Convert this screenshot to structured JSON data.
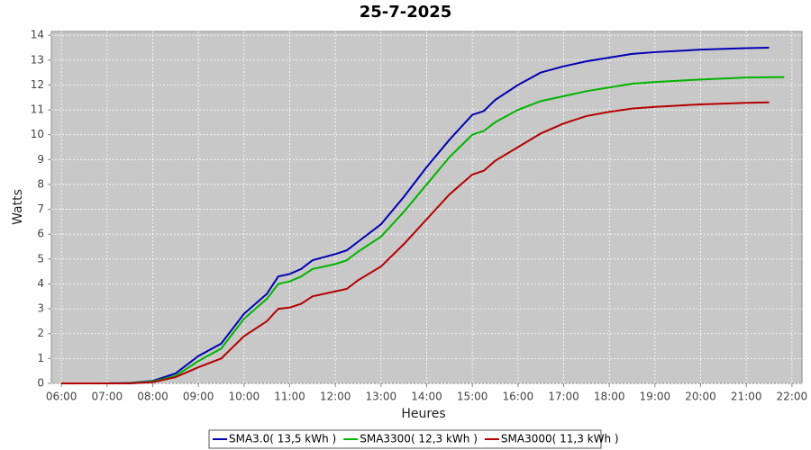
{
  "chart_data": {
    "type": "line",
    "title": "25-7-2025",
    "x_label": "Heures",
    "y_label": "Watts",
    "xlim": [
      5.78,
      22.22
    ],
    "xticks": [
      {
        "value": 6,
        "label": "06:00"
      },
      {
        "value": 7,
        "label": "07:00"
      },
      {
        "value": 8,
        "label": "08:00"
      },
      {
        "value": 9,
        "label": "09:00"
      },
      {
        "value": 10,
        "label": "10:00"
      },
      {
        "value": 11,
        "label": "11:00"
      },
      {
        "value": 12,
        "label": "12:00"
      },
      {
        "value": 13,
        "label": "13:00"
      },
      {
        "value": 14,
        "label": "14:00"
      },
      {
        "value": 15,
        "label": "15:00"
      },
      {
        "value": 16,
        "label": "16:00"
      },
      {
        "value": 17,
        "label": "17:00"
      },
      {
        "value": 18,
        "label": "18:00"
      },
      {
        "value": 19,
        "label": "19:00"
      },
      {
        "value": 20,
        "label": "20:00"
      },
      {
        "value": 21,
        "label": "21:00"
      },
      {
        "value": 22,
        "label": "22:00"
      }
    ],
    "ylim": [
      0,
      14.15
    ],
    "yticks": [
      0,
      1,
      2,
      3,
      4,
      5,
      6,
      7,
      8,
      9,
      10,
      11,
      12,
      13,
      14
    ],
    "grid": true,
    "legend": "bottom",
    "series": [
      {
        "name": "SMA3.0( 13,5 kWh )",
        "color": "#0000b4",
        "x": [
          6,
          7,
          7.5,
          8,
          8.5,
          9,
          9.5,
          10,
          10.5,
          10.75,
          11,
          11.25,
          11.5,
          12,
          12.25,
          12.5,
          13,
          13.5,
          14,
          14.5,
          15,
          15.25,
          15.5,
          16,
          16.5,
          17,
          17.5,
          18,
          18.5,
          19,
          20,
          21,
          21.5
        ],
        "values": [
          0,
          0,
          0.02,
          0.1,
          0.4,
          1.1,
          1.6,
          2.8,
          3.6,
          4.3,
          4.4,
          4.6,
          4.95,
          5.2,
          5.35,
          5.7,
          6.4,
          7.5,
          8.7,
          9.8,
          10.8,
          10.95,
          11.4,
          12.0,
          12.5,
          12.75,
          12.95,
          13.1,
          13.25,
          13.32,
          13.42,
          13.48,
          13.5
        ]
      },
      {
        "name": "SMA3300( 12,3 kWh )",
        "color": "#00b400",
        "x": [
          6,
          7,
          7.5,
          8,
          8.5,
          9,
          9.5,
          10,
          10.5,
          10.75,
          11,
          11.25,
          11.5,
          12,
          12.25,
          12.5,
          13,
          13.5,
          14,
          14.5,
          15,
          15.25,
          15.5,
          16,
          16.5,
          17,
          17.5,
          18,
          18.5,
          19,
          20,
          21,
          21.83
        ],
        "values": [
          0,
          0,
          0.01,
          0.08,
          0.3,
          0.9,
          1.4,
          2.6,
          3.4,
          4.0,
          4.1,
          4.3,
          4.6,
          4.8,
          4.95,
          5.3,
          5.9,
          6.9,
          8.0,
          9.1,
          10.0,
          10.15,
          10.5,
          11.0,
          11.35,
          11.55,
          11.75,
          11.9,
          12.05,
          12.12,
          12.22,
          12.3,
          12.32
        ]
      },
      {
        "name": "SMA3000( 11,3 kWh )",
        "color": "#b40000",
        "x": [
          6,
          7,
          7.5,
          8,
          8.5,
          9,
          9.5,
          10,
          10.5,
          10.75,
          11,
          11.25,
          11.5,
          12,
          12.25,
          12.5,
          13,
          13.5,
          14,
          14.5,
          15,
          15.25,
          15.5,
          16,
          16.5,
          17,
          17.5,
          18,
          18.5,
          19,
          20,
          21,
          21.5
        ],
        "values": [
          0,
          0,
          0,
          0.05,
          0.25,
          0.65,
          1.0,
          1.9,
          2.5,
          3.0,
          3.05,
          3.2,
          3.5,
          3.7,
          3.8,
          4.15,
          4.7,
          5.6,
          6.6,
          7.6,
          8.4,
          8.55,
          8.95,
          9.5,
          10.05,
          10.45,
          10.75,
          10.92,
          11.05,
          11.12,
          11.22,
          11.28,
          11.3
        ]
      }
    ]
  }
}
